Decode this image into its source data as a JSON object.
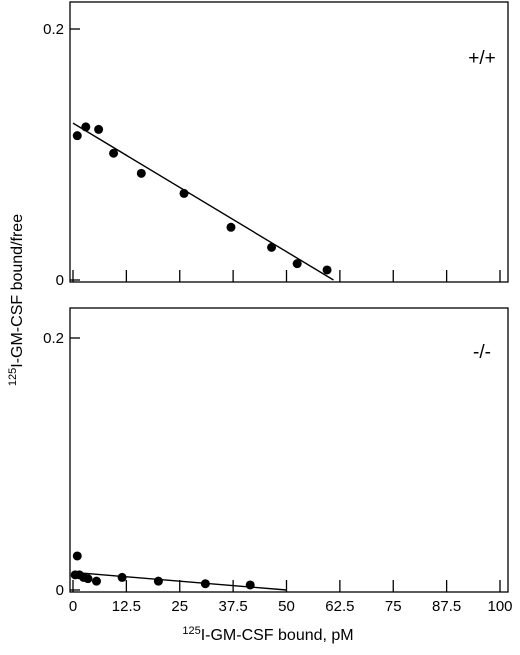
{
  "chart_data": {
    "type": "scatter",
    "xlabel": {
      "sup": "125",
      "text": "I-GM-CSF bound, pM"
    },
    "ylabel": {
      "sup": "125",
      "text": "I-GM-CSF bound/free"
    },
    "xlim": [
      0,
      100
    ],
    "ylim": [
      0,
      0.2
    ],
    "x_ticks": [
      "0",
      "12.5",
      "25",
      "37.5",
      "50",
      "62.5",
      "75",
      "87.5",
      "100"
    ],
    "y_ticks": [
      "0",
      "0.2"
    ],
    "panels": [
      {
        "label": "+/+",
        "points": [
          {
            "x": 1.0,
            "y": 0.115
          },
          {
            "x": 3.0,
            "y": 0.122
          },
          {
            "x": 6.0,
            "y": 0.12
          },
          {
            "x": 9.5,
            "y": 0.101
          },
          {
            "x": 16.0,
            "y": 0.085
          },
          {
            "x": 26.0,
            "y": 0.069
          },
          {
            "x": 37.0,
            "y": 0.042
          },
          {
            "x": 46.5,
            "y": 0.026
          },
          {
            "x": 52.5,
            "y": 0.013
          },
          {
            "x": 59.5,
            "y": 0.008
          }
        ],
        "fit_line": {
          "x": [
            0,
            61.0
          ],
          "y": [
            0.125,
            0.0
          ]
        }
      },
      {
        "label": "-/-",
        "points": [
          {
            "x": 0.5,
            "y": 0.012
          },
          {
            "x": 1.0,
            "y": 0.027
          },
          {
            "x": 1.5,
            "y": 0.012
          },
          {
            "x": 2.5,
            "y": 0.01
          },
          {
            "x": 3.5,
            "y": 0.009
          },
          {
            "x": 5.5,
            "y": 0.007
          },
          {
            "x": 11.5,
            "y": 0.01
          },
          {
            "x": 20.0,
            "y": 0.007
          },
          {
            "x": 31.0,
            "y": 0.005
          },
          {
            "x": 41.5,
            "y": 0.004
          }
        ],
        "fit_line": {
          "x": [
            0,
            50.0
          ],
          "y": [
            0.014,
            0.0
          ]
        }
      }
    ]
  }
}
